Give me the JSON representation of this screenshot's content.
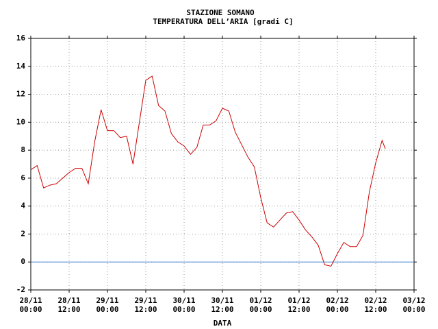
{
  "chart_data": {
    "type": "line",
    "title": "STAZIONE SOMANO",
    "subtitle": "TEMPERATURA DELL’ARIA [gradi C]",
    "x_label": "DATA",
    "x": [
      "28/11 00:00",
      "28/11 02:00",
      "28/11 04:00",
      "28/11 06:00",
      "28/11 08:00",
      "28/11 10:00",
      "28/11 12:00",
      "28/11 14:00",
      "28/11 16:00",
      "28/11 18:00",
      "28/11 20:00",
      "28/11 22:00",
      "29/11 00:00",
      "29/11 02:00",
      "29/11 04:00",
      "29/11 06:00",
      "29/11 08:00",
      "29/11 10:00",
      "29/11 12:00",
      "29/11 14:00",
      "29/11 16:00",
      "29/11 18:00",
      "29/11 20:00",
      "29/11 22:00",
      "30/11 00:00",
      "30/11 02:00",
      "30/11 04:00",
      "30/11 06:00",
      "30/11 08:00",
      "30/11 10:00",
      "30/11 12:00",
      "30/11 14:00",
      "30/11 16:00",
      "30/11 18:00",
      "30/11 20:00",
      "30/11 22:00",
      "01/12 00:00",
      "01/12 02:00",
      "01/12 04:00",
      "01/12 06:00",
      "01/12 08:00",
      "01/12 10:00",
      "01/12 12:00",
      "01/12 14:00",
      "01/12 16:00",
      "01/12 18:00",
      "01/12 20:00",
      "01/12 22:00",
      "02/12 00:00",
      "02/12 02:00",
      "02/12 04:00",
      "02/12 06:00",
      "02/12 08:00",
      "02/12 10:00",
      "02/12 12:00",
      "02/12 14:00",
      "02/12 15:00"
    ],
    "series": [
      {
        "name": "TEMPERATURA DELL’ARIA",
        "color": "#cc0000",
        "values": [
          6.6,
          6.9,
          5.3,
          5.5,
          5.6,
          6.0,
          6.4,
          6.7,
          6.7,
          5.6,
          8.6,
          10.9,
          9.4,
          9.4,
          8.9,
          9.0,
          7.0,
          10.0,
          13.0,
          13.3,
          11.2,
          10.8,
          9.2,
          8.6,
          8.3,
          7.7,
          8.2,
          9.8,
          9.8,
          10.1,
          11.0,
          10.8,
          9.3,
          8.4,
          7.5,
          6.8,
          4.6,
          2.8,
          2.5,
          3.0,
          3.5,
          3.6,
          3.0,
          2.3,
          1.8,
          1.2,
          -0.2,
          -0.3,
          0.6,
          1.4,
          1.1,
          1.1,
          1.9,
          5.0,
          7.1,
          8.7,
          8.1
        ]
      }
    ],
    "xlim": [
      "28/11 00:00",
      "03/12 00:00"
    ],
    "xticks": [
      "28/11 00:00",
      "28/11 12:00",
      "29/11 00:00",
      "29/11 12:00",
      "30/11 00:00",
      "30/11 12:00",
      "01/12 00:00",
      "01/12 12:00",
      "02/12 00:00",
      "02/12 12:00",
      "03/12 00:00"
    ],
    "ylim": [
      -2,
      16
    ],
    "yticks": [
      -2,
      0,
      2,
      4,
      6,
      8,
      10,
      12,
      14,
      16
    ],
    "grid": true,
    "reference_line": {
      "value": 0,
      "color": "#3a7fcf"
    }
  }
}
